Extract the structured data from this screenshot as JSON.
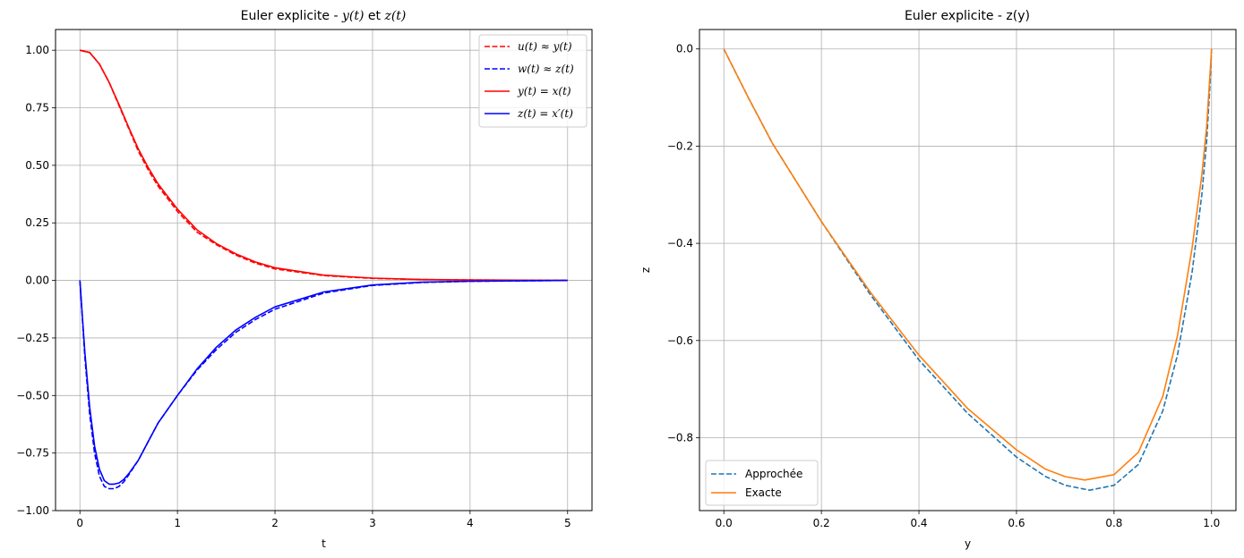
{
  "chart_data": [
    {
      "type": "line",
      "title_prefix": "Euler explicite - ",
      "title_math_1": "y(t)",
      "title_mid": " et ",
      "title_math_2": "z(t)",
      "xlabel": "t",
      "ylabel": "",
      "xlim": [
        -0.25,
        5.25
      ],
      "ylim": [
        -1.0,
        1.09
      ],
      "xticks": [
        0,
        1,
        2,
        3,
        4,
        5
      ],
      "xtick_labels": [
        "0",
        "1",
        "2",
        "3",
        "4",
        "5"
      ],
      "yticks": [
        1.0,
        0.75,
        0.5,
        0.25,
        0.0,
        -0.25,
        -0.5,
        -0.75,
        -1.0
      ],
      "ytick_labels": [
        "1.00",
        "0.75",
        "0.50",
        "0.25",
        "0.00",
        "−0.25",
        "−0.50",
        "−0.75",
        "−1.00"
      ],
      "grid": true,
      "legend_position": "top-right",
      "series": [
        {
          "name": "u(t) ≈ y(t)",
          "color": "#ff0000",
          "style": "dashed",
          "x": [
            0,
            0.1,
            0.2,
            0.3,
            0.4,
            0.5,
            0.6,
            0.7,
            0.8,
            1.0,
            1.2,
            1.4,
            1.6,
            1.8,
            2.0,
            2.5,
            3.0,
            3.5,
            4.0,
            5.0
          ],
          "y": [
            1.0,
            0.99,
            0.94,
            0.86,
            0.76,
            0.66,
            0.56,
            0.48,
            0.41,
            0.3,
            0.21,
            0.155,
            0.11,
            0.075,
            0.05,
            0.021,
            0.009,
            0.004,
            0.002,
            0.0
          ]
        },
        {
          "name": "w(t) ≈ z(t)",
          "color": "#0000ff",
          "style": "dashed",
          "x": [
            0,
            0.05,
            0.1,
            0.15,
            0.2,
            0.25,
            0.3,
            0.35,
            0.4,
            0.45,
            0.5,
            0.6,
            0.7,
            0.8,
            1.0,
            1.2,
            1.4,
            1.6,
            1.8,
            2.0,
            2.5,
            3.0,
            3.5,
            4.0,
            5.0
          ],
          "y": [
            0.0,
            -0.33,
            -0.58,
            -0.75,
            -0.85,
            -0.895,
            -0.905,
            -0.905,
            -0.895,
            -0.875,
            -0.845,
            -0.78,
            -0.7,
            -0.62,
            -0.5,
            -0.39,
            -0.3,
            -0.225,
            -0.17,
            -0.125,
            -0.055,
            -0.022,
            -0.009,
            -0.004,
            0.0
          ]
        },
        {
          "name": "y(t) = x(t)",
          "color": "#ff0000",
          "style": "solid",
          "x": [
            0,
            0.1,
            0.2,
            0.3,
            0.4,
            0.5,
            0.6,
            0.7,
            0.8,
            1.0,
            1.2,
            1.4,
            1.6,
            1.8,
            2.0,
            2.5,
            3.0,
            3.5,
            4.0,
            5.0
          ],
          "y": [
            1.0,
            0.99,
            0.94,
            0.86,
            0.765,
            0.665,
            0.57,
            0.49,
            0.42,
            0.31,
            0.22,
            0.16,
            0.115,
            0.08,
            0.055,
            0.023,
            0.01,
            0.004,
            0.002,
            0.0
          ]
        },
        {
          "name": "z(t) = x′(t)",
          "color": "#0000ff",
          "style": "solid",
          "x": [
            0,
            0.05,
            0.1,
            0.15,
            0.2,
            0.25,
            0.3,
            0.35,
            0.4,
            0.45,
            0.5,
            0.6,
            0.7,
            0.8,
            1.0,
            1.2,
            1.4,
            1.6,
            1.8,
            2.0,
            2.5,
            3.0,
            3.5,
            4.0,
            5.0
          ],
          "y": [
            0.0,
            -0.31,
            -0.55,
            -0.72,
            -0.82,
            -0.87,
            -0.885,
            -0.885,
            -0.88,
            -0.865,
            -0.84,
            -0.78,
            -0.7,
            -0.62,
            -0.5,
            -0.385,
            -0.29,
            -0.215,
            -0.16,
            -0.115,
            -0.05,
            -0.02,
            -0.008,
            -0.003,
            0.0
          ]
        }
      ]
    },
    {
      "type": "line",
      "title": "Euler explicite - z(y)",
      "xlabel": "y",
      "ylabel": "z",
      "xlim": [
        -0.05,
        1.05
      ],
      "ylim": [
        -0.95,
        0.04
      ],
      "xticks": [
        0,
        0.2,
        0.4,
        0.6,
        0.8,
        1.0
      ],
      "xtick_labels": [
        "0.0",
        "0.2",
        "0.4",
        "0.6",
        "0.8",
        "1.0"
      ],
      "yticks": [
        0.0,
        -0.2,
        -0.4,
        -0.6,
        -0.8
      ],
      "ytick_labels": [
        "0.0",
        "−0.2",
        "−0.4",
        "−0.6",
        "−0.8"
      ],
      "grid": true,
      "legend_position": "bottom-left",
      "series": [
        {
          "name": "Approchée",
          "color": "#1f77b4",
          "style": "dashed",
          "x": [
            0.0,
            0.05,
            0.1,
            0.2,
            0.3,
            0.4,
            0.5,
            0.6,
            0.66,
            0.7,
            0.75,
            0.8,
            0.85,
            0.9,
            0.93,
            0.96,
            0.98,
            0.99,
            0.997,
            1.0
          ],
          "y": [
            0.0,
            -0.1,
            -0.195,
            -0.355,
            -0.505,
            -0.64,
            -0.75,
            -0.84,
            -0.88,
            -0.898,
            -0.908,
            -0.898,
            -0.855,
            -0.745,
            -0.63,
            -0.46,
            -0.3,
            -0.19,
            -0.07,
            0.0
          ]
        },
        {
          "name": "Exacte",
          "color": "#ff7f0e",
          "style": "solid",
          "x": [
            0.0,
            0.05,
            0.1,
            0.2,
            0.3,
            0.4,
            0.5,
            0.6,
            0.66,
            0.7,
            0.74,
            0.8,
            0.85,
            0.9,
            0.93,
            0.96,
            0.98,
            0.99,
            0.997,
            1.0
          ],
          "y": [
            0.0,
            -0.1,
            -0.195,
            -0.355,
            -0.5,
            -0.63,
            -0.74,
            -0.825,
            -0.865,
            -0.88,
            -0.887,
            -0.876,
            -0.83,
            -0.715,
            -0.59,
            -0.41,
            -0.26,
            -0.16,
            -0.05,
            0.0
          ]
        }
      ]
    }
  ]
}
